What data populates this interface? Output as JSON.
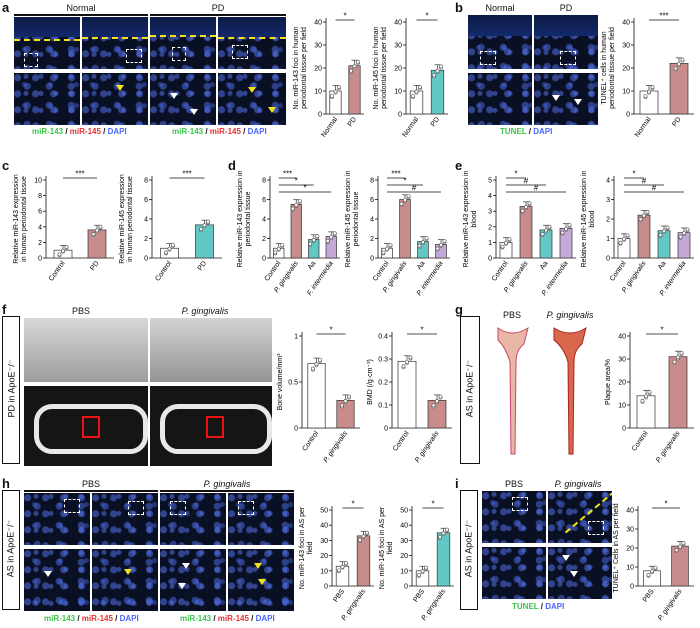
{
  "panels": [
    "a",
    "b",
    "c",
    "d",
    "e",
    "f",
    "g",
    "h",
    "i"
  ],
  "colors": {
    "green": "#38c54a",
    "red": "#e53030",
    "blue": "#4a64ff",
    "white_bar": "#ffffff",
    "rose": "#c98c8c",
    "teal": "#62c7c5",
    "violet": "#c3a8d8"
  },
  "a": {
    "normal_title": "Normal",
    "pd_title": "PD",
    "caption": {
      "m143": "miR-143",
      "sep1": " / ",
      "m145": "miR-145",
      "sep2": " / ",
      "dapi": "DAPI"
    }
  },
  "b": {
    "normal_title": "Normal",
    "pd_title": "PD",
    "caption": {
      "tunel": "TUNEL",
      "sep": " / ",
      "dapi": "DAPI"
    }
  },
  "f": {
    "label": "PD in ApoE⁻/⁻",
    "pbs": "PBS",
    "pg": "P. gingivalis"
  },
  "g": {
    "label": "AS in ApoE⁻/⁻",
    "pbs": "PBS",
    "pg": "P. gingivalis"
  },
  "h": {
    "label": "AS in ApoE⁻/⁻",
    "pbs": "PBS",
    "pg": "P. gingivalis",
    "caption": {
      "m143": "miR-143",
      "sep1": " / ",
      "m145": "miR-145",
      "sep2": " / ",
      "dapi": "DAPI"
    }
  },
  "i": {
    "label": "AS in ApoE⁻/⁻",
    "pbs": "PBS",
    "pg": "P. gingivalis",
    "caption": {
      "tunel": "TUNEL",
      "sep": " / ",
      "dapi": "DAPI"
    }
  },
  "chart_data": [
    {
      "id": "a1",
      "type": "bar",
      "categories": [
        "Normal",
        "PD"
      ],
      "values": [
        10,
        21
      ],
      "ylabel": "No. miR-143 foci in human periodontal tissue per field",
      "ylim": [
        0,
        40
      ],
      "yticks": [
        0,
        10,
        20,
        30,
        40
      ],
      "sig": "*",
      "colors": [
        "#ffffff",
        "#c98c8c"
      ]
    },
    {
      "id": "a2",
      "type": "bar",
      "categories": [
        "Normal",
        "PD"
      ],
      "values": [
        10,
        19
      ],
      "ylabel": "No. miR-145 foci in human periodontal tissue per field",
      "ylim": [
        0,
        40
      ],
      "yticks": [
        0,
        10,
        20,
        30,
        40
      ],
      "sig": "*",
      "colors": [
        "#ffffff",
        "#62c7c5"
      ]
    },
    {
      "id": "b1",
      "type": "bar",
      "categories": [
        "Normal",
        "PD"
      ],
      "values": [
        10,
        22
      ],
      "ylabel": "TUNEL⁺ cells in human periodontal tissue per field",
      "ylim": [
        0,
        40
      ],
      "yticks": [
        0,
        10,
        20,
        30,
        40
      ],
      "sig": "***",
      "colors": [
        "#ffffff",
        "#c98c8c"
      ]
    },
    {
      "id": "c1",
      "type": "bar",
      "categories": [
        "Control",
        "PD"
      ],
      "values": [
        1,
        3.6
      ],
      "ylabel": "Relative miR-143 expression in human periodontal tissue",
      "ylim": [
        0,
        10
      ],
      "yticks": [
        0,
        2,
        4,
        6,
        8,
        10
      ],
      "sig": "***",
      "colors": [
        "#ffffff",
        "#c98c8c"
      ]
    },
    {
      "id": "c2",
      "type": "bar",
      "categories": [
        "Control",
        "PD"
      ],
      "values": [
        1,
        3.4
      ],
      "ylabel": "Relative miR-145 expression in human periodontal tissue",
      "ylim": [
        0,
        8
      ],
      "yticks": [
        0,
        2,
        4,
        6,
        8
      ],
      "sig": "***",
      "colors": [
        "#ffffff",
        "#62c7c5"
      ]
    },
    {
      "id": "d1",
      "type": "bar",
      "categories": [
        "Control",
        "P. gingivalis",
        "Aa",
        "F. intermedia"
      ],
      "values": [
        1,
        5.5,
        1.9,
        2.2
      ],
      "ylabel": "Relative miR-143 expression in periodontal tissue",
      "ylim": [
        0,
        8
      ],
      "yticks": [
        0,
        2,
        4,
        6,
        8
      ],
      "sig": [
        "***",
        "*",
        "*"
      ],
      "colors": [
        "#ffffff",
        "#c98c8c",
        "#62c7c5",
        "#c3a8d8"
      ]
    },
    {
      "id": "d2",
      "type": "bar",
      "categories": [
        "Control",
        "P. gingivalis",
        "Aa",
        "P. intermedia"
      ],
      "values": [
        1,
        6,
        1.7,
        1.4
      ],
      "ylabel": "Relative miR-145 expression in periodontal tissue",
      "ylim": [
        0,
        8
      ],
      "yticks": [
        0,
        2,
        4,
        6,
        8
      ],
      "sig": [
        "***",
        "*",
        "#"
      ],
      "colors": [
        "#ffffff",
        "#c98c8c",
        "#62c7c5",
        "#c3a8d8"
      ]
    },
    {
      "id": "e1",
      "type": "bar",
      "categories": [
        "Control",
        "P. gingivalis",
        "Aa",
        "P. intermedia"
      ],
      "values": [
        1,
        3.3,
        1.8,
        1.9
      ],
      "ylabel": "Relative miR-143 expression in blood",
      "ylim": [
        0,
        5
      ],
      "yticks": [
        0,
        1,
        2,
        3,
        4,
        5
      ],
      "sig": [
        "*",
        "#",
        "#"
      ],
      "colors": [
        "#ffffff",
        "#c98c8c",
        "#62c7c5",
        "#c3a8d8"
      ]
    },
    {
      "id": "e2",
      "type": "bar",
      "categories": [
        "Control",
        "P. gingivalis",
        "Aa",
        "P. intermedia"
      ],
      "values": [
        1,
        2.2,
        1.4,
        1.3
      ],
      "ylabel": "Relative miR-145 expression in blood",
      "ylim": [
        0,
        4
      ],
      "yticks": [
        0,
        1,
        2,
        3,
        4
      ],
      "sig": [
        "*",
        "#",
        "#"
      ],
      "colors": [
        "#ffffff",
        "#c98c8c",
        "#62c7c5",
        "#c3a8d8"
      ]
    },
    {
      "id": "f1",
      "type": "bar",
      "categories": [
        "Control",
        "P. gingivalis"
      ],
      "values": [
        0.7,
        0.3
      ],
      "ylabel": "Bone volume/mm³",
      "ylim": [
        0,
        1
      ],
      "yticks": [
        0,
        0.5,
        1.0
      ],
      "sig": "*",
      "colors": [
        "#ffffff",
        "#c98c8c"
      ]
    },
    {
      "id": "f2",
      "type": "bar",
      "categories": [
        "Control",
        "P. gingivalis"
      ],
      "values": [
        0.29,
        0.12
      ],
      "ylabel": "BMD (/g·cm⁻³)",
      "ylim": [
        0,
        0.4
      ],
      "yticks": [
        0,
        0.1,
        0.2,
        0.3,
        0.4
      ],
      "sig": "*",
      "colors": [
        "#ffffff",
        "#c98c8c"
      ]
    },
    {
      "id": "g1",
      "type": "bar",
      "categories": [
        "Control",
        "P. gingivalis"
      ],
      "values": [
        14,
        31
      ],
      "ylabel": "Plaque area/%",
      "ylim": [
        0,
        40
      ],
      "yticks": [
        0,
        10,
        20,
        30,
        40
      ],
      "sig": "*",
      "colors": [
        "#ffffff",
        "#c98c8c"
      ]
    },
    {
      "id": "h1",
      "type": "bar",
      "categories": [
        "PBS",
        "P. gingivalis"
      ],
      "values": [
        13,
        33
      ],
      "ylabel": "No. miR-143 foci in AS per field",
      "ylim": [
        0,
        50
      ],
      "yticks": [
        0,
        10,
        20,
        30,
        40,
        50
      ],
      "sig": "*",
      "colors": [
        "#ffffff",
        "#c98c8c"
      ]
    },
    {
      "id": "h2",
      "type": "bar",
      "categories": [
        "PBS",
        "P. gingivalis"
      ],
      "values": [
        10,
        35
      ],
      "ylabel": "No. miR-145 foci in AS per field",
      "ylim": [
        0,
        50
      ],
      "yticks": [
        0,
        10,
        20,
        30,
        40,
        50
      ],
      "sig": "*",
      "colors": [
        "#ffffff",
        "#62c7c5"
      ]
    },
    {
      "id": "i1",
      "type": "bar",
      "categories": [
        "PBS",
        "P. gingivalis"
      ],
      "values": [
        8,
        21
      ],
      "ylabel": "TUNEL⁺ Cells in AS per field",
      "ylim": [
        0,
        40
      ],
      "yticks": [
        0,
        10,
        20,
        30,
        40
      ],
      "sig": "*",
      "colors": [
        "#ffffff",
        "#c98c8c"
      ]
    }
  ]
}
